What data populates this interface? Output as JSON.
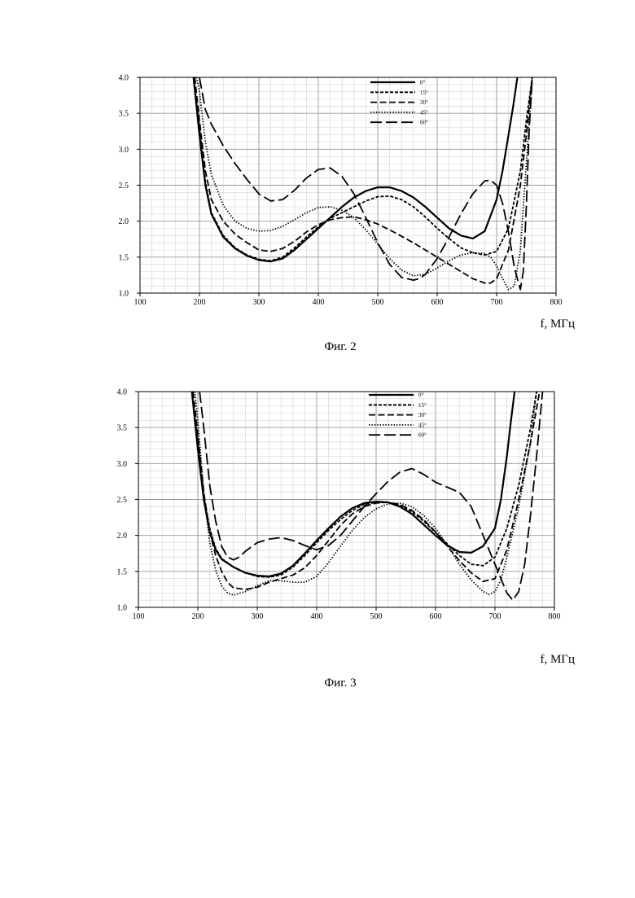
{
  "figures": [
    {
      "caption": "Фиг. 2",
      "x_unit_label": "f, МГц"
    },
    {
      "caption": "Фиг. 3",
      "x_unit_label": "f, МГц"
    }
  ],
  "chart_data": [
    {
      "type": "line",
      "xlim": [
        100,
        800
      ],
      "ylim": [
        1.0,
        4.0
      ],
      "x_ticks": [
        "100",
        "200",
        "300",
        "400",
        "500",
        "600",
        "700",
        "800"
      ],
      "y_ticks": [
        "1.0",
        "1.5",
        "2.0",
        "2.5",
        "3.0",
        "3.5",
        "4.0"
      ],
      "grid": true,
      "legend_position": "top-right inside",
      "series": [
        {
          "name": "0°",
          "style": "solid",
          "x": [
            190,
            200,
            210,
            220,
            240,
            260,
            280,
            300,
            320,
            340,
            360,
            380,
            400,
            420,
            440,
            460,
            480,
            500,
            520,
            540,
            560,
            580,
            600,
            620,
            640,
            660,
            680,
            700,
            710,
            720,
            728,
            735
          ],
          "y": [
            4.0,
            3.2,
            2.5,
            2.1,
            1.78,
            1.62,
            1.52,
            1.46,
            1.44,
            1.48,
            1.6,
            1.75,
            1.9,
            2.05,
            2.2,
            2.33,
            2.42,
            2.47,
            2.47,
            2.42,
            2.33,
            2.2,
            2.05,
            1.9,
            1.8,
            1.76,
            1.86,
            2.3,
            2.7,
            3.2,
            3.6,
            4.0
          ]
        },
        {
          "name": "15°",
          "style": "short-dash",
          "x": [
            190,
            200,
            210,
            220,
            240,
            260,
            280,
            300,
            320,
            340,
            360,
            380,
            400,
            420,
            440,
            460,
            480,
            500,
            520,
            540,
            560,
            580,
            600,
            620,
            640,
            660,
            680,
            700,
            720,
            740,
            750,
            760
          ],
          "y": [
            4.0,
            3.3,
            2.55,
            2.12,
            1.8,
            1.63,
            1.53,
            1.47,
            1.45,
            1.5,
            1.63,
            1.78,
            1.92,
            2.04,
            2.12,
            2.2,
            2.28,
            2.34,
            2.35,
            2.3,
            2.2,
            2.06,
            1.9,
            1.76,
            1.63,
            1.56,
            1.53,
            1.58,
            1.9,
            2.7,
            3.4,
            4.0
          ]
        },
        {
          "name": "30°",
          "style": "medium-dash",
          "x": [
            192,
            200,
            210,
            220,
            240,
            260,
            280,
            300,
            320,
            340,
            360,
            380,
            400,
            420,
            440,
            460,
            480,
            500,
            520,
            540,
            560,
            580,
            600,
            620,
            640,
            660,
            680,
            690,
            700,
            720,
            740,
            750,
            760
          ],
          "y": [
            4.0,
            3.4,
            2.7,
            2.3,
            2.0,
            1.82,
            1.7,
            1.6,
            1.58,
            1.62,
            1.72,
            1.85,
            1.95,
            2.02,
            2.05,
            2.06,
            2.02,
            1.96,
            1.88,
            1.79,
            1.7,
            1.6,
            1.5,
            1.4,
            1.3,
            1.2,
            1.14,
            1.14,
            1.2,
            1.6,
            2.5,
            3.2,
            4.0
          ]
        },
        {
          "name": "45°",
          "style": "dotted",
          "x": [
            195,
            200,
            210,
            220,
            240,
            260,
            280,
            300,
            320,
            340,
            360,
            380,
            400,
            420,
            440,
            460,
            480,
            500,
            520,
            540,
            560,
            580,
            600,
            620,
            640,
            660,
            680,
            690,
            700,
            710,
            720,
            730,
            740,
            750,
            760
          ],
          "y": [
            4.0,
            3.8,
            3.1,
            2.65,
            2.22,
            2.0,
            1.9,
            1.86,
            1.87,
            1.93,
            2.02,
            2.12,
            2.19,
            2.2,
            2.15,
            2.05,
            1.88,
            1.68,
            1.48,
            1.32,
            1.24,
            1.26,
            1.35,
            1.45,
            1.53,
            1.56,
            1.55,
            1.5,
            1.38,
            1.2,
            1.05,
            1.1,
            1.6,
            2.8,
            4.0
          ]
        },
        {
          "name": "60°",
          "style": "long-dash",
          "x": [
            200,
            210,
            220,
            240,
            260,
            280,
            300,
            320,
            340,
            360,
            380,
            400,
            420,
            440,
            460,
            480,
            500,
            520,
            540,
            560,
            570,
            580,
            600,
            620,
            640,
            660,
            680,
            690,
            700,
            710,
            720,
            730,
            740,
            745,
            750,
            755,
            760
          ],
          "y": [
            4.0,
            3.55,
            3.35,
            3.05,
            2.8,
            2.58,
            2.38,
            2.28,
            2.3,
            2.43,
            2.6,
            2.72,
            2.74,
            2.62,
            2.38,
            2.05,
            1.7,
            1.4,
            1.22,
            1.18,
            1.2,
            1.26,
            1.48,
            1.78,
            2.1,
            2.38,
            2.56,
            2.57,
            2.5,
            2.25,
            1.85,
            1.35,
            1.05,
            1.3,
            2.2,
            3.3,
            4.0
          ]
        }
      ]
    },
    {
      "type": "line",
      "xlim": [
        100,
        800
      ],
      "ylim": [
        1.0,
        4.0
      ],
      "x_ticks": [
        "100",
        "200",
        "300",
        "400",
        "500",
        "600",
        "700",
        "800"
      ],
      "y_ticks": [
        "1.0",
        "1.5",
        "2.0",
        "2.5",
        "3.0",
        "3.5",
        "4.0"
      ],
      "grid": true,
      "legend_position": "top-right inside",
      "series": [
        {
          "name": "0°",
          "style": "solid",
          "x": [
            190,
            200,
            210,
            220,
            230,
            240,
            260,
            280,
            300,
            320,
            340,
            360,
            380,
            400,
            420,
            440,
            460,
            480,
            500,
            520,
            540,
            560,
            580,
            600,
            620,
            640,
            660,
            680,
            700,
            710,
            720,
            727,
            733
          ],
          "y": [
            4.0,
            3.2,
            2.5,
            2.05,
            1.8,
            1.67,
            1.56,
            1.48,
            1.44,
            1.43,
            1.47,
            1.58,
            1.75,
            1.93,
            2.1,
            2.26,
            2.38,
            2.45,
            2.47,
            2.46,
            2.4,
            2.3,
            2.15,
            2.0,
            1.86,
            1.77,
            1.76,
            1.85,
            2.1,
            2.5,
            3.1,
            3.6,
            4.0
          ]
        },
        {
          "name": "15°",
          "style": "short-dash",
          "x": [
            190,
            200,
            210,
            220,
            230,
            240,
            260,
            280,
            300,
            320,
            340,
            360,
            380,
            400,
            420,
            440,
            460,
            480,
            500,
            520,
            540,
            560,
            580,
            600,
            620,
            640,
            660,
            680,
            700,
            720,
            740,
            760,
            770
          ],
          "y": [
            4.0,
            3.3,
            2.55,
            2.1,
            1.82,
            1.68,
            1.56,
            1.48,
            1.43,
            1.42,
            1.45,
            1.56,
            1.72,
            1.9,
            2.07,
            2.22,
            2.35,
            2.43,
            2.46,
            2.46,
            2.42,
            2.33,
            2.2,
            2.04,
            1.88,
            1.72,
            1.6,
            1.58,
            1.7,
            2.1,
            2.7,
            3.5,
            4.0
          ]
        },
        {
          "name": "30°",
          "style": "medium-dash",
          "x": [
            192,
            200,
            210,
            220,
            230,
            240,
            250,
            260,
            280,
            300,
            320,
            340,
            360,
            380,
            400,
            420,
            440,
            460,
            480,
            500,
            520,
            540,
            560,
            580,
            600,
            620,
            640,
            660,
            680,
            700,
            720,
            740,
            760,
            775
          ],
          "y": [
            4.0,
            3.4,
            2.6,
            2.05,
            1.72,
            1.5,
            1.35,
            1.27,
            1.25,
            1.28,
            1.35,
            1.4,
            1.45,
            1.55,
            1.72,
            1.93,
            2.14,
            2.3,
            2.4,
            2.45,
            2.46,
            2.43,
            2.35,
            2.22,
            2.05,
            1.85,
            1.65,
            1.48,
            1.36,
            1.4,
            1.8,
            2.5,
            3.3,
            4.0
          ]
        },
        {
          "name": "45°",
          "style": "dotted",
          "x": [
            195,
            200,
            210,
            220,
            230,
            240,
            250,
            260,
            280,
            300,
            320,
            340,
            360,
            380,
            400,
            420,
            440,
            460,
            480,
            500,
            520,
            540,
            560,
            580,
            600,
            620,
            640,
            660,
            680,
            690,
            700,
            710,
            720,
            740,
            760,
            770
          ],
          "y": [
            4.0,
            3.6,
            2.6,
            1.9,
            1.52,
            1.3,
            1.2,
            1.17,
            1.22,
            1.3,
            1.37,
            1.37,
            1.35,
            1.35,
            1.43,
            1.62,
            1.85,
            2.07,
            2.25,
            2.37,
            2.44,
            2.45,
            2.4,
            2.28,
            2.1,
            1.86,
            1.6,
            1.38,
            1.22,
            1.18,
            1.22,
            1.38,
            1.7,
            2.4,
            3.3,
            4.0
          ]
        },
        {
          "name": "60°",
          "style": "long-dash",
          "x": [
            203,
            210,
            220,
            230,
            240,
            250,
            260,
            270,
            280,
            300,
            320,
            340,
            360,
            380,
            400,
            420,
            440,
            460,
            480,
            500,
            520,
            540,
            560,
            580,
            600,
            620,
            640,
            660,
            680,
            700,
            720,
            730,
            740,
            750,
            760,
            770,
            780
          ],
          "y": [
            4.0,
            3.5,
            2.7,
            2.2,
            1.85,
            1.7,
            1.66,
            1.7,
            1.78,
            1.9,
            1.95,
            1.97,
            1.93,
            1.86,
            1.8,
            1.86,
            2.0,
            2.2,
            2.4,
            2.58,
            2.75,
            2.88,
            2.93,
            2.85,
            2.74,
            2.67,
            2.6,
            2.4,
            2.0,
            1.6,
            1.2,
            1.1,
            1.22,
            1.6,
            2.3,
            3.1,
            4.0
          ]
        }
      ]
    }
  ]
}
